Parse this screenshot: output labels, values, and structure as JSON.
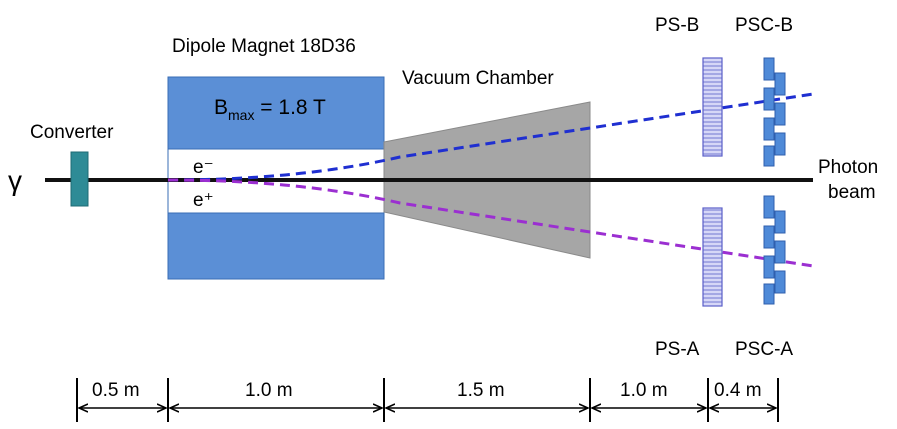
{
  "labels": {
    "gamma": "γ",
    "converter": "Converter",
    "dipole_title": "Dipole Magnet 18D36",
    "bmax_base": "B",
    "bmax_sub": "max",
    "bmax_value": " = 1.8 T",
    "electron": "e⁻",
    "positron": "e⁺",
    "vacuum_chamber": "Vacuum Chamber",
    "ps_b": "PS-B",
    "psc_b": "PSC-B",
    "ps_a": "PS-A",
    "psc_a": "PSC-A",
    "photon": "Photon",
    "beam": "beam"
  },
  "dimensions": [
    "0.5 m",
    "1.0 m",
    "1.5 m",
    "1.0 m",
    "0.4 m"
  ],
  "colors": {
    "magnet": "#5b8fd6",
    "magnet_border": "#3a6db5",
    "converter": "#2e8b96",
    "chamber": "#a6a6a6",
    "electron_track": "#1f2fd1",
    "positron_track": "#9b2fd1",
    "detector_fill": "#c7c9f5",
    "detector_stroke": "#5a5fc9",
    "psc_fill": "#4f8ad8"
  }
}
